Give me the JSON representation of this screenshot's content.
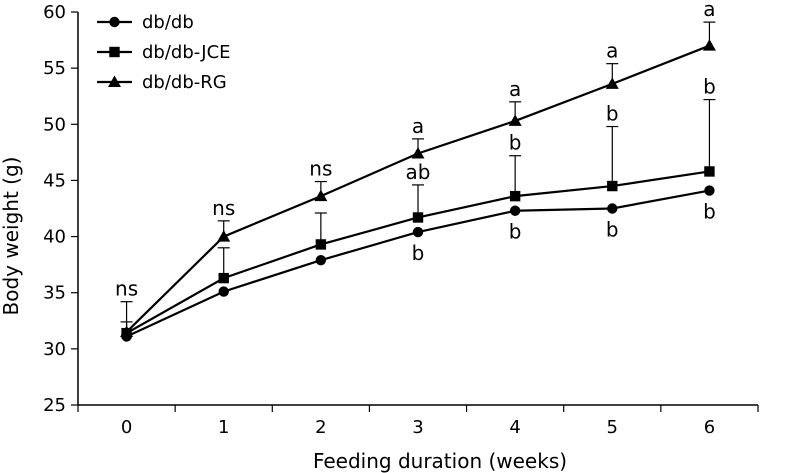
{
  "chart_data": {
    "type": "line",
    "title": "",
    "xlabel": "Feeding duration (weeks)",
    "ylabel": "Body weight (g)",
    "x": [
      0,
      1,
      2,
      3,
      4,
      5,
      6
    ],
    "x_tick_labels": [
      "0",
      "1",
      "2",
      "3",
      "4",
      "5",
      "6"
    ],
    "ylim": [
      25,
      60
    ],
    "y_ticks": [
      25,
      30,
      35,
      40,
      45,
      50,
      55,
      60
    ],
    "y_tick_labels": [
      "25",
      "30",
      "35",
      "40",
      "45",
      "50",
      "55",
      "60"
    ],
    "legend_position": "top-left",
    "grid": false,
    "series": [
      {
        "name": "db/db",
        "marker": "circle",
        "values": [
          31.1,
          35.1,
          37.9,
          40.4,
          42.3,
          42.5,
          44.1
        ],
        "errors": [
          1.3,
          0.0,
          0.0,
          0.0,
          0.0,
          0.0,
          0.0
        ]
      },
      {
        "name": "db/db-JCE",
        "marker": "square",
        "values": [
          31.4,
          36.3,
          39.3,
          41.7,
          43.6,
          44.5,
          45.8
        ],
        "errors": [
          0.0,
          2.7,
          2.8,
          2.9,
          3.6,
          5.3,
          6.4
        ]
      },
      {
        "name": "db/db-RG",
        "marker": "triangle",
        "values": [
          31.5,
          40.0,
          43.6,
          47.4,
          50.3,
          53.6,
          57.0
        ],
        "errors": [
          2.7,
          1.4,
          1.3,
          1.3,
          1.7,
          1.8,
          2.1
        ]
      }
    ],
    "annotations": [
      {
        "x": 0,
        "y": 34.2,
        "text": "ns",
        "side": "above"
      },
      {
        "x": 1,
        "y": 41.4,
        "text": "ns",
        "side": "above"
      },
      {
        "x": 2,
        "y": 44.9,
        "text": "ns",
        "side": "above"
      },
      {
        "x": 3,
        "y": 48.7,
        "text": "a",
        "side": "above"
      },
      {
        "x": 4,
        "y": 52.0,
        "text": "a",
        "side": "above"
      },
      {
        "x": 5,
        "y": 55.4,
        "text": "a",
        "side": "above"
      },
      {
        "x": 6,
        "y": 59.1,
        "text": "a",
        "side": "above"
      },
      {
        "x": 3,
        "y": 44.6,
        "text": "ab",
        "side": "above"
      },
      {
        "x": 4,
        "y": 47.2,
        "text": "b",
        "side": "above"
      },
      {
        "x": 5,
        "y": 49.8,
        "text": "b",
        "side": "above"
      },
      {
        "x": 6,
        "y": 52.2,
        "text": "b",
        "side": "above"
      },
      {
        "x": 3,
        "y": 40.4,
        "text": "b",
        "side": "below"
      },
      {
        "x": 4,
        "y": 42.3,
        "text": "b",
        "side": "below"
      },
      {
        "x": 5,
        "y": 42.5,
        "text": "b",
        "side": "below"
      },
      {
        "x": 6,
        "y": 44.1,
        "text": "b",
        "side": "below"
      }
    ]
  }
}
